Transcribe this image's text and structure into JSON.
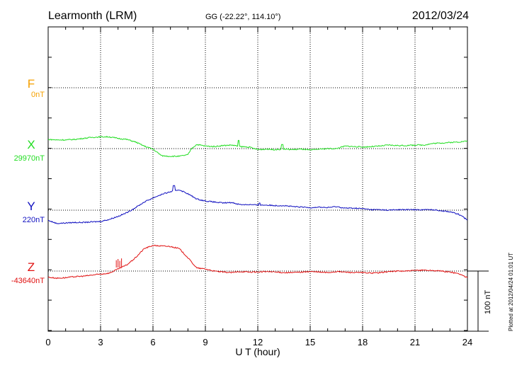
{
  "header": {
    "station": "Learmonth (LRM)",
    "coords": "GG (-22.22°, 114.10°)",
    "date": "2012/03/24"
  },
  "footer": {
    "plotted": "Plotted at 2012/04/24 01:01  UT"
  },
  "colors": {
    "F": "#f5a000",
    "X": "#22dd22",
    "Y": "#1010c0",
    "Z": "#e01010",
    "axis": "#000000",
    "grid": "#000000"
  },
  "chart_data": {
    "type": "line",
    "xlabel": "U T (hour)",
    "xlim": [
      0,
      24
    ],
    "xticks": [
      "0",
      "3",
      "6",
      "9",
      "12",
      "15",
      "18",
      "21",
      "24"
    ],
    "grid": true,
    "scale_bar_label": "100 nT",
    "scale_bar_nT": 100,
    "series": [
      {
        "name": "F",
        "baseline_label": "0nT",
        "x": [],
        "y": []
      },
      {
        "name": "X",
        "baseline_label": "29970nT",
        "x": [
          0,
          0.5,
          1,
          1.5,
          2,
          2.5,
          3,
          3.5,
          4,
          4.5,
          5,
          5.5,
          6,
          6.5,
          7,
          7.5,
          8,
          8.2,
          8.5,
          9,
          9.5,
          10,
          10.5,
          11,
          11.5,
          12,
          12.5,
          13,
          13.5,
          14,
          14.5,
          15,
          15.5,
          16,
          16.5,
          17,
          17.5,
          18,
          18.5,
          19,
          19.5,
          20,
          20.5,
          21,
          21.5,
          22,
          22.5,
          23,
          23.5,
          24
        ],
        "y": [
          18,
          17,
          17,
          18,
          20,
          22,
          23,
          23,
          20,
          18,
          13,
          5,
          -1,
          -14,
          -15,
          -15,
          -12,
          0,
          8,
          5,
          4,
          6,
          7,
          4,
          3,
          -2,
          -1,
          -2,
          -1,
          -2,
          -1,
          -3,
          -1,
          0,
          0,
          5,
          4,
          3,
          4,
          5,
          7,
          6,
          6,
          7,
          7,
          10,
          11,
          12,
          13,
          15
        ],
        "peaks": [
          [
            10.9,
            16
          ],
          [
            13.4,
            8
          ]
        ]
      },
      {
        "name": "Y",
        "baseline_label": "220nT",
        "x": [
          0,
          0.5,
          1,
          1.5,
          2,
          2.5,
          3,
          3.5,
          4,
          4.5,
          5,
          5.5,
          6,
          6.5,
          7,
          7.5,
          8,
          8.5,
          9,
          9.5,
          10,
          10.5,
          11,
          11.5,
          12,
          12.5,
          13,
          13.5,
          14,
          14.5,
          15,
          15.5,
          16,
          16.5,
          17,
          17.5,
          18,
          18.5,
          19,
          19.5,
          20,
          20.5,
          21,
          21.5,
          22,
          22.5,
          23,
          23.5,
          24
        ],
        "y": [
          -20,
          -26,
          -25,
          -24,
          -24,
          -23,
          -22,
          -18,
          -12,
          -5,
          5,
          16,
          24,
          31,
          36,
          40,
          32,
          22,
          18,
          16,
          14,
          15,
          11,
          11,
          10,
          10,
          9,
          9,
          7,
          6,
          5,
          6,
          5,
          7,
          4,
          4,
          3,
          1,
          1,
          0,
          1,
          1,
          1,
          1,
          1,
          -1,
          -3,
          -8,
          -19
        ],
        "peaks": [
          [
            7.2,
            48
          ],
          [
            12.1,
            14
          ]
        ]
      },
      {
        "name": "Z",
        "baseline_label": "-43640nT",
        "x": [
          0,
          0.5,
          1,
          1.5,
          2,
          2.5,
          3,
          3.5,
          4,
          4.5,
          5,
          5.5,
          6,
          6.5,
          7,
          7.5,
          8,
          8.5,
          9,
          9.5,
          10,
          10.5,
          11,
          11.5,
          12,
          12.5,
          13,
          13.5,
          14,
          14.5,
          15,
          15.5,
          16,
          16.5,
          17,
          17.5,
          18,
          18.5,
          19,
          19.5,
          20,
          20.5,
          21,
          21.5,
          22,
          22.5,
          23,
          23.5,
          24
        ],
        "y": [
          -12,
          -14,
          -13,
          -11,
          -10,
          -8,
          -6,
          -4,
          4,
          12,
          26,
          44,
          50,
          49,
          48,
          44,
          26,
          6,
          4,
          0,
          -2,
          -3,
          -1,
          -2,
          -2,
          -1,
          -2,
          -3,
          -3,
          -2,
          -1,
          -2,
          -3,
          -1,
          -2,
          -3,
          -3,
          -4,
          -3,
          -1,
          0,
          0,
          1,
          2,
          1,
          0,
          -2,
          -5,
          -13
        ],
        "spikes": [
          [
            3.9,
            18
          ],
          [
            4.0,
            20
          ],
          [
            4.1,
            17
          ],
          [
            4.2,
            21
          ]
        ]
      }
    ]
  }
}
